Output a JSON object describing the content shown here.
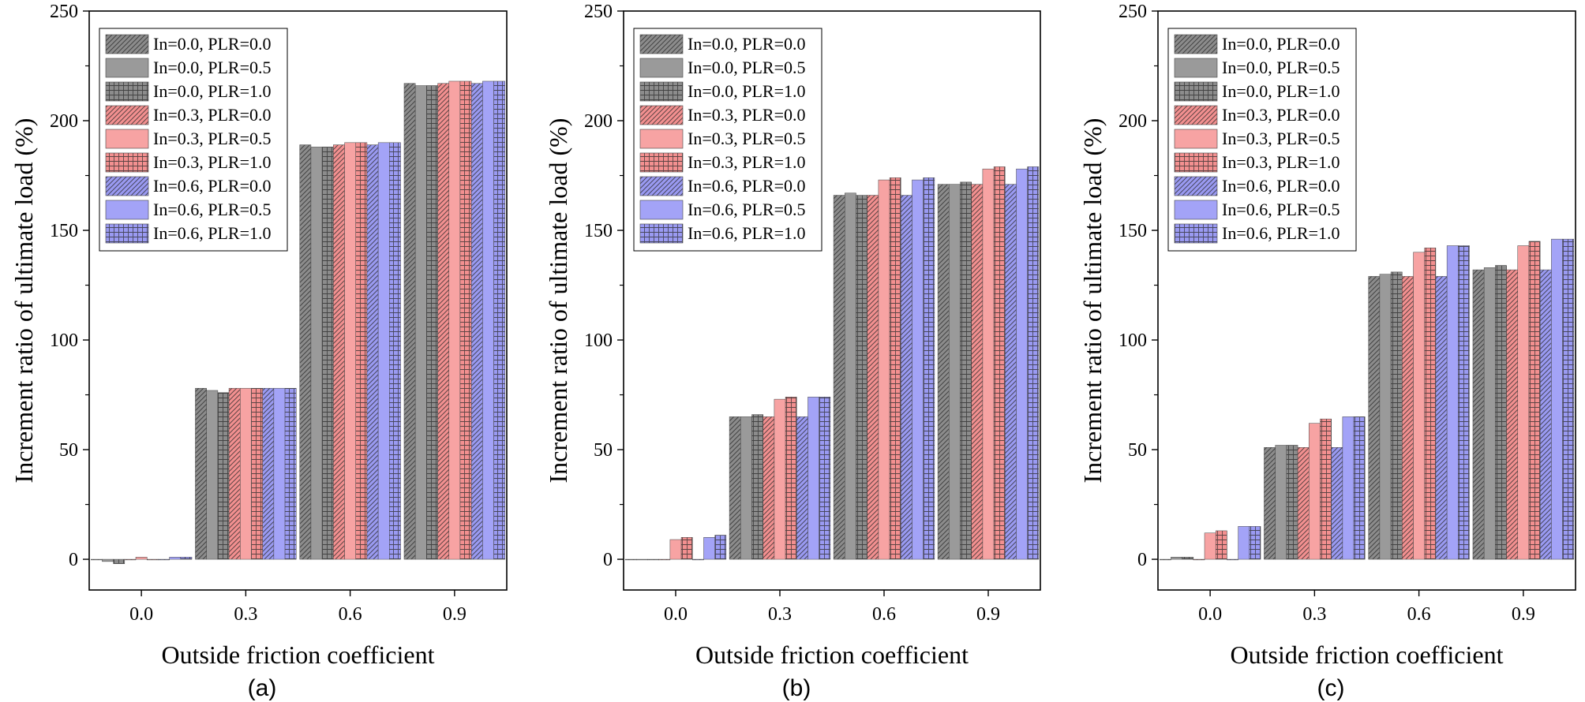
{
  "series_legend": [
    {
      "name": "In=0.0, PLR=0.0",
      "color": "#8c8c8c",
      "pattern": "diag"
    },
    {
      "name": "In=0.0, PLR=0.5",
      "color": "#9a9a9a",
      "pattern": "solid"
    },
    {
      "name": "In=0.0, PLR=1.0",
      "color": "#8c8c8c",
      "pattern": "grid"
    },
    {
      "name": "In=0.3, PLR=0.0",
      "color": "#f39090",
      "pattern": "diag"
    },
    {
      "name": "In=0.3, PLR=0.5",
      "color": "#f7a3a3",
      "pattern": "solid"
    },
    {
      "name": "In=0.3, PLR=1.0",
      "color": "#f39090",
      "pattern": "grid"
    },
    {
      "name": "In=0.6, PLR=0.0",
      "color": "#9a9af2",
      "pattern": "diag"
    },
    {
      "name": "In=0.6, PLR=0.5",
      "color": "#a3a3f7",
      "pattern": "solid"
    },
    {
      "name": "In=0.6, PLR=1.0",
      "color": "#9a9af2",
      "pattern": "grid"
    }
  ],
  "chart_data": [
    {
      "panel": "(a)",
      "type": "bar",
      "xlabel": "Outside friction coefficient",
      "ylabel": "Increment ratio of ultimate load (%)",
      "ylim": [
        -14,
        250
      ],
      "yticks": [
        0,
        50,
        100,
        150,
        200,
        250
      ],
      "categories": [
        "0.0",
        "0.3",
        "0.6",
        "0.9"
      ],
      "legend_position": "top-left",
      "series": [
        {
          "name": "In=0.0, PLR=0.0",
          "values": [
            0,
            78,
            189,
            217
          ]
        },
        {
          "name": "In=0.0, PLR=0.5",
          "values": [
            -1,
            77,
            188,
            216
          ]
        },
        {
          "name": "In=0.0, PLR=1.0",
          "values": [
            -2,
            76,
            188,
            216
          ]
        },
        {
          "name": "In=0.3, PLR=0.0",
          "values": [
            0,
            78,
            189,
            217
          ]
        },
        {
          "name": "In=0.3, PLR=0.5",
          "values": [
            1,
            78,
            190,
            218
          ]
        },
        {
          "name": "In=0.3, PLR=1.0",
          "values": [
            0,
            78,
            190,
            218
          ]
        },
        {
          "name": "In=0.6, PLR=0.0",
          "values": [
            0,
            78,
            189,
            217
          ]
        },
        {
          "name": "In=0.6, PLR=0.5",
          "values": [
            1,
            78,
            190,
            218
          ]
        },
        {
          "name": "In=0.6, PLR=1.0",
          "values": [
            1,
            78,
            190,
            218
          ]
        }
      ]
    },
    {
      "panel": "(b)",
      "type": "bar",
      "xlabel": "Outside friction coefficient",
      "ylabel": "Increment ratio of ultimate load (%)",
      "ylim": [
        -14,
        250
      ],
      "yticks": [
        0,
        50,
        100,
        150,
        200,
        250
      ],
      "categories": [
        "0.0",
        "0.3",
        "0.6",
        "0.9"
      ],
      "legend_position": "top-left",
      "series": [
        {
          "name": "In=0.0, PLR=0.0",
          "values": [
            0,
            65,
            166,
            171
          ]
        },
        {
          "name": "In=0.0, PLR=0.5",
          "values": [
            0,
            65,
            167,
            171
          ]
        },
        {
          "name": "In=0.0, PLR=1.0",
          "values": [
            0,
            66,
            166,
            172
          ]
        },
        {
          "name": "In=0.3, PLR=0.0",
          "values": [
            0,
            65,
            166,
            171
          ]
        },
        {
          "name": "In=0.3, PLR=0.5",
          "values": [
            9,
            73,
            173,
            178
          ]
        },
        {
          "name": "In=0.3, PLR=1.0",
          "values": [
            10,
            74,
            174,
            179
          ]
        },
        {
          "name": "In=0.6, PLR=0.0",
          "values": [
            0,
            65,
            166,
            171
          ]
        },
        {
          "name": "In=0.6, PLR=0.5",
          "values": [
            10,
            74,
            173,
            178
          ]
        },
        {
          "name": "In=0.6, PLR=1.0",
          "values": [
            11,
            74,
            174,
            179
          ]
        }
      ]
    },
    {
      "panel": "(c)",
      "type": "bar",
      "xlabel": "Outside friction coefficient",
      "ylabel": "Increment ratio of ultimate load (%)",
      "ylim": [
        -14,
        250
      ],
      "yticks": [
        0,
        50,
        100,
        150,
        200,
        250
      ],
      "categories": [
        "0.0",
        "0.3",
        "0.6",
        "0.9"
      ],
      "legend_position": "top-left",
      "series": [
        {
          "name": "In=0.0, PLR=0.0",
          "values": [
            0,
            51,
            129,
            132
          ]
        },
        {
          "name": "In=0.0, PLR=0.5",
          "values": [
            1,
            52,
            130,
            133
          ]
        },
        {
          "name": "In=0.0, PLR=1.0",
          "values": [
            1,
            52,
            131,
            134
          ]
        },
        {
          "name": "In=0.3, PLR=0.0",
          "values": [
            0,
            51,
            129,
            132
          ]
        },
        {
          "name": "In=0.3, PLR=0.5",
          "values": [
            12,
            62,
            140,
            143
          ]
        },
        {
          "name": "In=0.3, PLR=1.0",
          "values": [
            13,
            64,
            142,
            145
          ]
        },
        {
          "name": "In=0.6, PLR=0.0",
          "values": [
            0,
            51,
            129,
            132
          ]
        },
        {
          "name": "In=0.6, PLR=0.5",
          "values": [
            15,
            65,
            143,
            146
          ]
        },
        {
          "name": "In=0.6, PLR=1.0",
          "values": [
            15,
            65,
            143,
            146
          ]
        }
      ]
    }
  ]
}
